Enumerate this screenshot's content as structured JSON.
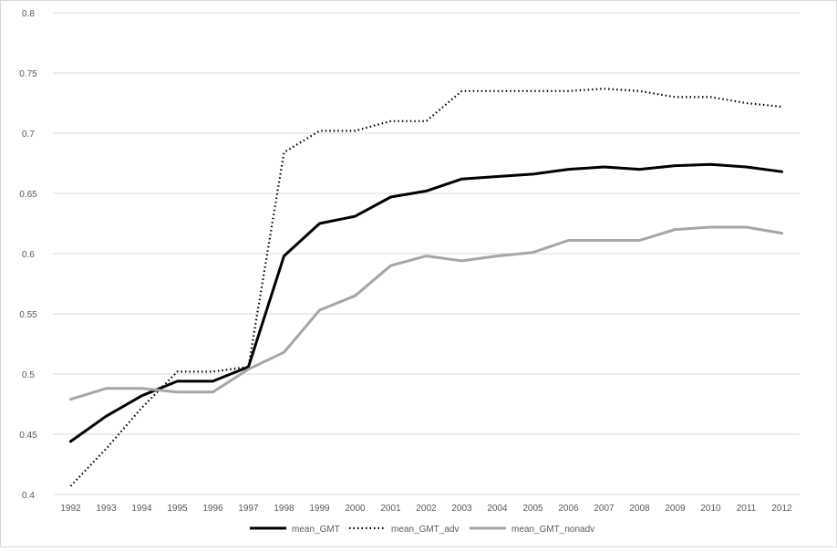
{
  "chart_data": {
    "type": "line",
    "title": "",
    "xlabel": "",
    "ylabel": "",
    "x": [
      1992,
      1993,
      1994,
      1995,
      1996,
      1997,
      1998,
      1999,
      2000,
      2001,
      2002,
      2003,
      2004,
      2005,
      2006,
      2007,
      2008,
      2009,
      2010,
      2011,
      2012
    ],
    "ylim": [
      0.4,
      0.8
    ],
    "yticks": [
      0.4,
      0.45,
      0.5,
      0.55,
      0.6,
      0.65,
      0.7,
      0.75,
      0.8
    ],
    "ytick_labels": [
      "0.4",
      "0.45",
      "0.5",
      "0.55",
      "0.6",
      "0.65",
      "0.7",
      "0.75",
      "0.8"
    ],
    "grid": "horizontal",
    "legend_position": "bottom",
    "series": [
      {
        "name": "mean_GMT",
        "style": "solid",
        "color": "#000000",
        "values": [
          0.444,
          0.465,
          0.482,
          0.494,
          0.494,
          0.506,
          0.598,
          0.625,
          0.631,
          0.647,
          0.652,
          0.662,
          0.664,
          0.666,
          0.67,
          0.672,
          0.67,
          0.673,
          0.674,
          0.672,
          0.668
        ]
      },
      {
        "name": "mean_GMT_adv",
        "style": "dotted",
        "color": "#000000",
        "values": [
          0.407,
          0.438,
          0.472,
          0.502,
          0.502,
          0.506,
          0.684,
          0.702,
          0.702,
          0.71,
          0.71,
          0.735,
          0.735,
          0.735,
          0.735,
          0.737,
          0.735,
          0.73,
          0.73,
          0.725,
          0.722
        ]
      },
      {
        "name": "mean_GMT_nonadv",
        "style": "solid",
        "color": "#a6a6a6",
        "values": [
          0.479,
          0.488,
          0.488,
          0.485,
          0.485,
          0.504,
          0.518,
          0.553,
          0.565,
          0.59,
          0.598,
          0.594,
          0.598,
          0.601,
          0.611,
          0.611,
          0.611,
          0.62,
          0.622,
          0.622,
          0.617
        ]
      }
    ]
  }
}
